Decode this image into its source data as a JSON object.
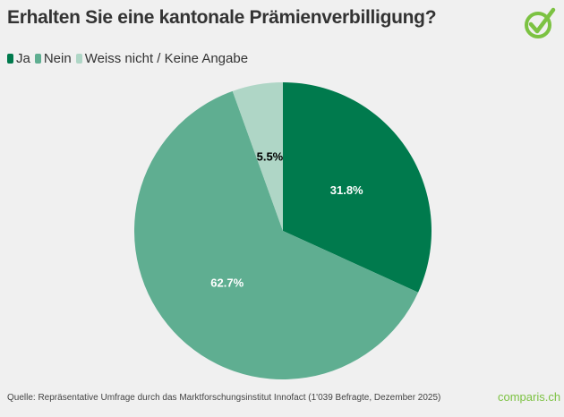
{
  "chart_data": {
    "type": "pie",
    "title": "Erhalten Sie eine kantonale Prämienverbilligung?",
    "categories": [
      "Ja",
      "Nein",
      "Weiss nicht / Keine Angabe"
    ],
    "values": [
      31.8,
      62.7,
      5.5
    ],
    "data_labels": [
      "31.8%",
      "62.7%",
      "5.5%"
    ],
    "colors": [
      "#007a4d",
      "#5fae91",
      "#afd6c6"
    ],
    "label_colors": [
      "#ffffff",
      "#ffffff",
      "#000000"
    ],
    "legend_position": "top-left",
    "start_angle": "top, clockwise"
  },
  "source": "Quelle: Repräsentative Umfrage durch das Marktforschungsinstitut Innofact (1'039 Befragte, Dezember 2025)",
  "brand": "comparis.ch",
  "brand_color": "#7cc242"
}
